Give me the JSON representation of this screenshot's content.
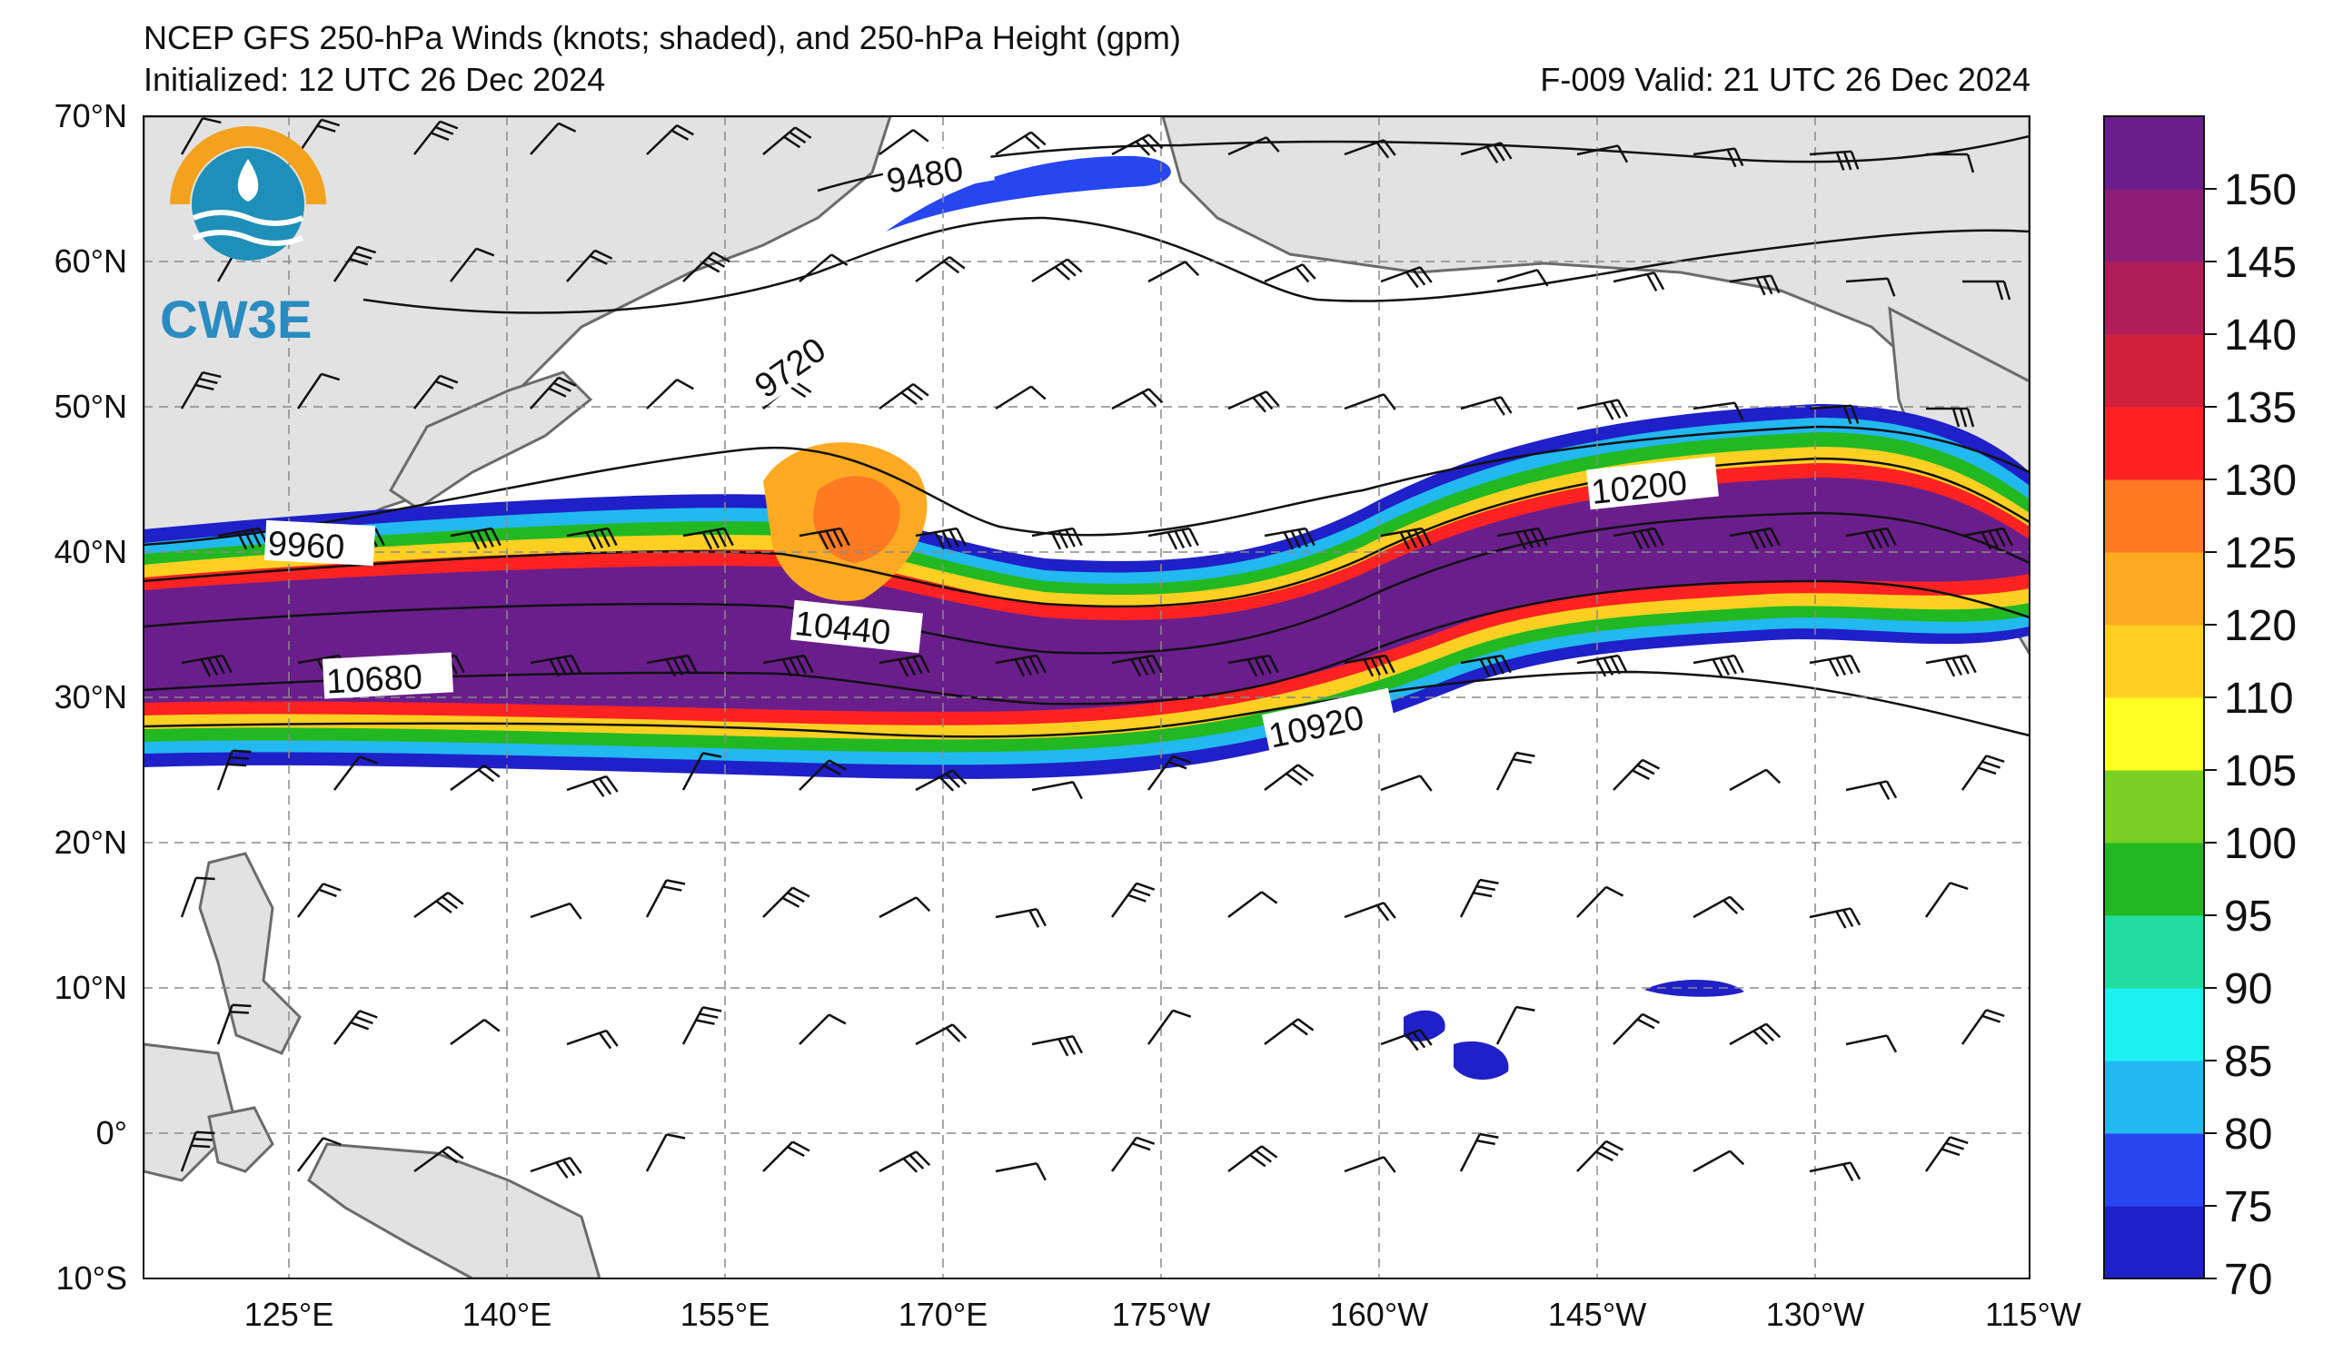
{
  "header": {
    "title": "NCEP GFS 250-hPa Winds (knots; shaded), and 250-hPa Height (gpm)",
    "initialized": "Initialized: 12 UTC 26 Dec 2024",
    "valid": "F-009  Valid: 21 UTC 26 Dec 2024"
  },
  "logo": {
    "text": "CW3E",
    "colors": {
      "ring": "#f4a11d",
      "wave": "#1e8fb8",
      "text": "#2a8cc0"
    }
  },
  "map": {
    "lat_labels": [
      "70°N",
      "60°N",
      "50°N",
      "40°N",
      "30°N",
      "20°N",
      "10°N",
      "0°",
      "10°S"
    ],
    "lon_labels": [
      "125°E",
      "140°E",
      "155°E",
      "170°E",
      "175°W",
      "160°W",
      "145°W",
      "130°W",
      "115°W"
    ],
    "contour_labels": [
      "9480",
      "9720",
      "9960",
      "10200",
      "10440",
      "10680",
      "10920"
    ],
    "colors": {
      "land": "#e2e2e2",
      "coast": "#6b6b6b",
      "grid": "#8a8a8a",
      "contour": "#111111"
    }
  },
  "colorbar": {
    "ticks": [
      "70",
      "75",
      "80",
      "85",
      "90",
      "95",
      "100",
      "105",
      "110",
      "120",
      "125",
      "130",
      "135",
      "140",
      "145",
      "150"
    ],
    "colors": [
      "#2020c8",
      "#2646f0",
      "#22b8f0",
      "#1ef0f0",
      "#22dca0",
      "#22b822",
      "#78d022",
      "#ffff22",
      "#ffd022",
      "#ffaa22",
      "#ff7a22",
      "#ff2222",
      "#d0203c",
      "#b01e5a",
      "#8c1e78",
      "#6a1e8c"
    ]
  }
}
